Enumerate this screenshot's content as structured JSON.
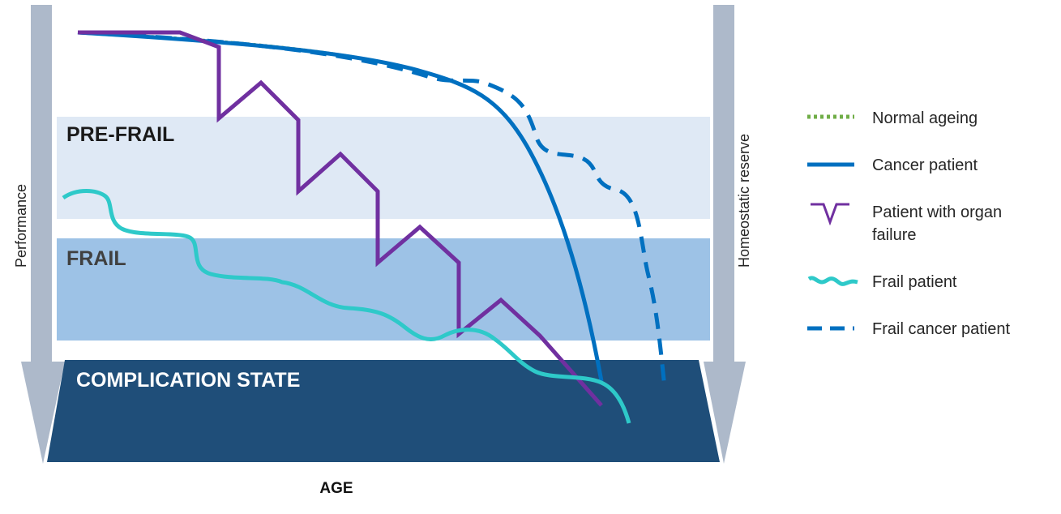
{
  "zones": {
    "pre_frail": "PRE-FRAIL",
    "frail": "FRAIL",
    "complication": "COMPLICATION STATE"
  },
  "axes": {
    "x_label": "AGE",
    "left_label": "Performance",
    "right_label": "Homeostatic reserve"
  },
  "legend": [
    {
      "label": "Normal ageing",
      "style": "dotted",
      "color": "#70ad47",
      "icon": "dotted-line-icon"
    },
    {
      "label": "Cancer patient",
      "style": "solid",
      "color": "#0070c0",
      "icon": "solid-line-icon"
    },
    {
      "label": "Patient with organ failure",
      "style": "dip",
      "color": "#7030a0",
      "icon": "dip-line-icon"
    },
    {
      "label": "Frail patient",
      "style": "wavy",
      "color": "#2ec9c9",
      "icon": "wavy-line-icon"
    },
    {
      "label": "Frail cancer patient",
      "style": "dashed",
      "color": "#0070c0",
      "icon": "dashed-line-icon"
    }
  ],
  "colors": {
    "pre_frail_band": "#dfe9f5",
    "frail_band": "#9dc2e6",
    "complication_band": "#1f4e79",
    "arrow": "#adb9ca"
  }
}
